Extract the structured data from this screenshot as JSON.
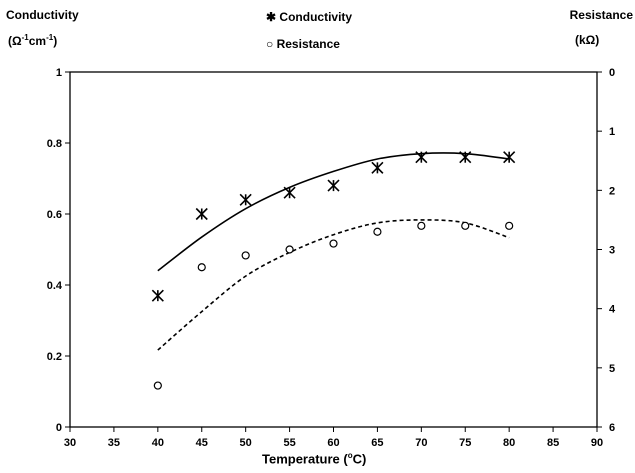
{
  "chart_data": {
    "type": "scatter",
    "xlabel": "Temperature (°C)",
    "xlim": [
      30,
      90
    ],
    "x_ticks": [
      30,
      35,
      40,
      45,
      50,
      55,
      60,
      65,
      70,
      75,
      80,
      85,
      90
    ],
    "left_axis": {
      "title": "Conductivity",
      "unit": "(Ω-1cm-1)",
      "lim": [
        0,
        1
      ],
      "ticks": [
        "0",
        "0.2",
        "0.4",
        "0.6",
        "0.8",
        "1"
      ]
    },
    "right_axis": {
      "title": "Resistance",
      "unit": "(kΩ)",
      "lim": [
        0,
        6
      ],
      "inverted": true,
      "ticks": [
        "0",
        "1",
        "2",
        "3",
        "4",
        "5",
        "6"
      ]
    },
    "legend": {
      "placement": "top-center",
      "entries": [
        {
          "marker": "x-star",
          "label": "Conductivity"
        },
        {
          "marker": "circle",
          "label": "Resistance"
        }
      ]
    },
    "series": [
      {
        "name": "Conductivity",
        "axis": "left",
        "marker": "x-star",
        "x": [
          40,
          45,
          50,
          55,
          60,
          65,
          70,
          75,
          80
        ],
        "y": [
          0.37,
          0.6,
          0.64,
          0.66,
          0.68,
          0.73,
          0.76,
          0.76,
          0.76
        ],
        "trend": {
          "style": "solid",
          "x": [
            40,
            45,
            50,
            55,
            60,
            65,
            70,
            75,
            80
          ],
          "y": [
            0.44,
            0.535,
            0.615,
            0.675,
            0.72,
            0.755,
            0.77,
            0.77,
            0.755
          ]
        }
      },
      {
        "name": "Resistance",
        "axis": "right",
        "marker": "circle",
        "x": [
          40,
          45,
          50,
          55,
          60,
          65,
          70,
          75,
          80
        ],
        "y": [
          5.3,
          3.3,
          3.1,
          3.0,
          2.9,
          2.7,
          2.6,
          2.6,
          2.6
        ],
        "trend": {
          "style": "dashed",
          "x": [
            40,
            45,
            50,
            55,
            60,
            65,
            70,
            75,
            80
          ],
          "y": [
            4.7,
            4.05,
            3.45,
            3.05,
            2.75,
            2.55,
            2.5,
            2.55,
            2.8
          ]
        }
      }
    ]
  }
}
